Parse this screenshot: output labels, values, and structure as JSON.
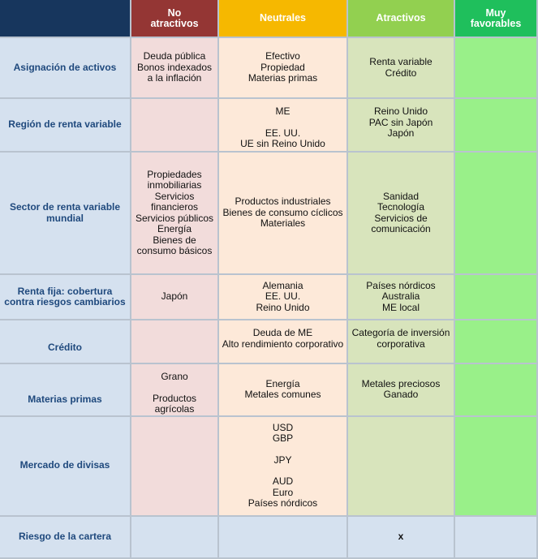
{
  "headers": {
    "corner": "",
    "no_atractivos": "No\natractivos",
    "neutrales": "Neutrales",
    "atractivos": "Atractivos",
    "muy_favorables": "Muy\nfavorables"
  },
  "rows": [
    {
      "label": "Asignación de activos",
      "no": [
        "Deuda pública",
        "Bonos indexados a la inflación"
      ],
      "neu": [
        "Efectivo",
        "Propiedad",
        "Materias primas"
      ],
      "atr": [
        "Renta variable",
        "Crédito"
      ],
      "muy": []
    },
    {
      "label": "Región de renta variable",
      "no": [],
      "neu": [
        "ME",
        "",
        "EE. UU.",
        "UE sin Reino Unido"
      ],
      "atr": [
        "Reino Unido",
        "PAC sin Japón",
        "Japón"
      ],
      "muy": []
    },
    {
      "label": "Sector de renta variable mundial",
      "no": [
        "Propiedades inmobiliarias",
        "Servicios financieros",
        "Servicios públicos",
        "Energía",
        "Bienes de consumo básicos"
      ],
      "neu": [
        "Productos industriales",
        "Bienes de consumo cíclicos",
        "Materiales"
      ],
      "atr": [
        "Sanidad",
        "Tecnología",
        "Servicios de comunicación"
      ],
      "muy": []
    },
    {
      "label": "Renta fija: cobertura contra riesgos cambiarios",
      "no": [
        "Japón"
      ],
      "neu": [
        "Alemania",
        "EE. UU.",
        "Reino Unido"
      ],
      "atr": [
        "Países nórdicos",
        "Australia",
        "ME local"
      ],
      "muy": []
    },
    {
      "label": "Crédito",
      "no": [],
      "neu": [
        "Deuda de ME",
        "Alto rendimiento corporativo"
      ],
      "atr": [
        "Categoría de inversión corporativa"
      ],
      "muy": []
    },
    {
      "label": "Materias primas",
      "no": [
        "Grano",
        "",
        "Productos agrícolas"
      ],
      "neu": [
        "Energía",
        "Metales comunes"
      ],
      "atr": [
        "Metales preciosos",
        "Ganado"
      ],
      "muy": []
    },
    {
      "label": "Mercado de divisas",
      "no": [],
      "neu": [
        "USD",
        "GBP",
        "",
        "JPY",
        "",
        "AUD",
        "Euro",
        "Países nórdicos"
      ],
      "atr": [],
      "muy": []
    }
  ],
  "risk": {
    "label": "Riesgo de la cartera",
    "no": "",
    "neu": "",
    "atr": "x",
    "muy": ""
  }
}
